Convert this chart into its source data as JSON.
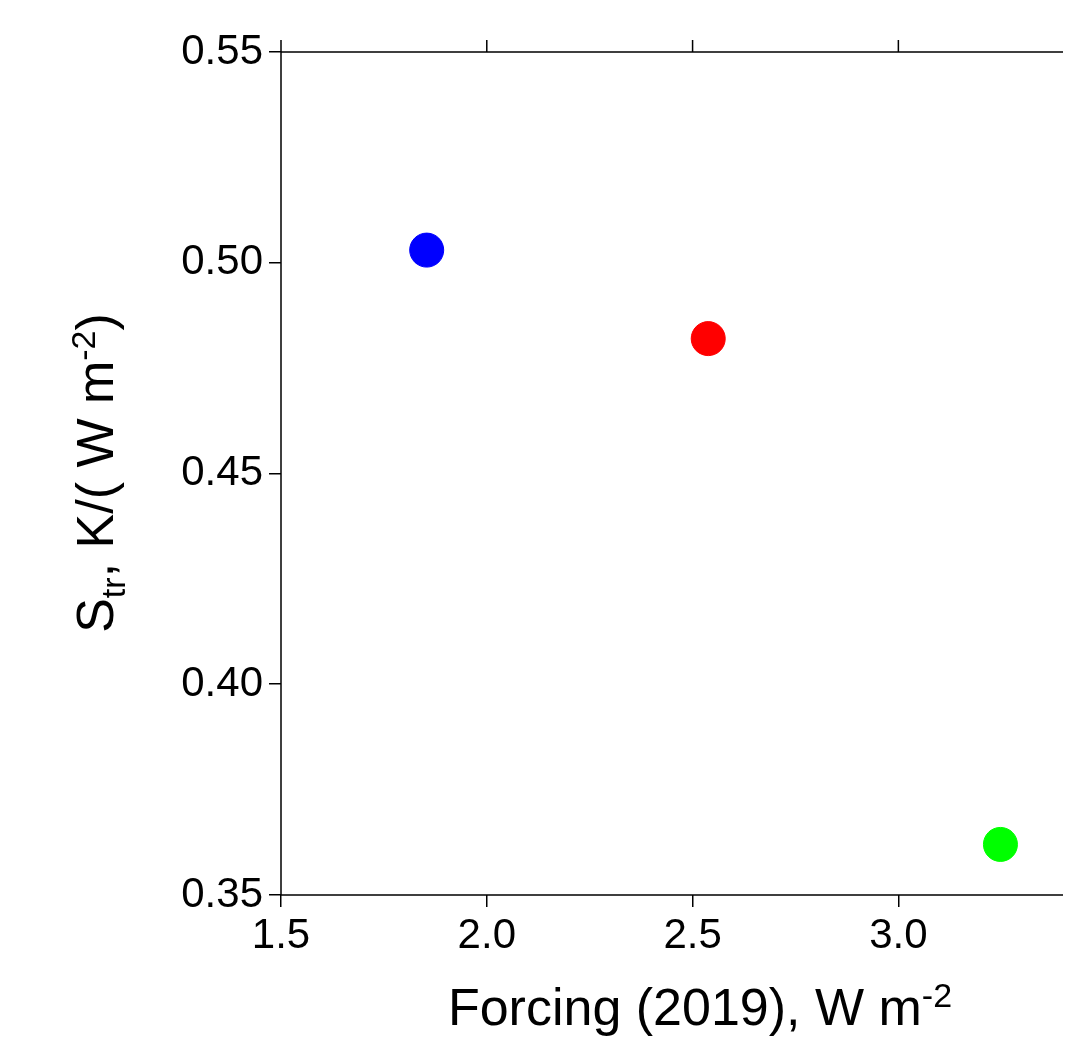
{
  "chart_data": {
    "type": "scatter",
    "xlabel": "Forcing (2019), W m$^{-2}$",
    "ylabel": "S$_{tr}$, K/( W m$^{-2}$)",
    "x": [
      1.854,
      2.538,
      3.248
    ],
    "values": [
      0.503,
      0.482,
      0.362
    ],
    "colors": [
      "#0000ff",
      "#ff0000",
      "#00ff00"
    ],
    "marker": "circle",
    "xlim": [
      1.5,
      3.4
    ],
    "xticks": [
      {
        "value": 1.5,
        "label": "1.5"
      },
      {
        "value": 2.0,
        "label": "2.0"
      },
      {
        "value": 2.5,
        "label": "2.5"
      },
      {
        "value": 3.0,
        "label": "3.0"
      }
    ],
    "ylim": [
      0.35,
      0.55
    ],
    "yticks": [
      {
        "value": 0.35,
        "label": "0.35"
      },
      {
        "value": 0.4,
        "label": "0.40"
      },
      {
        "value": 0.45,
        "label": "0.45"
      },
      {
        "value": 0.5,
        "label": "0.50"
      },
      {
        "value": 0.55,
        "label": "0.55"
      }
    ]
  }
}
